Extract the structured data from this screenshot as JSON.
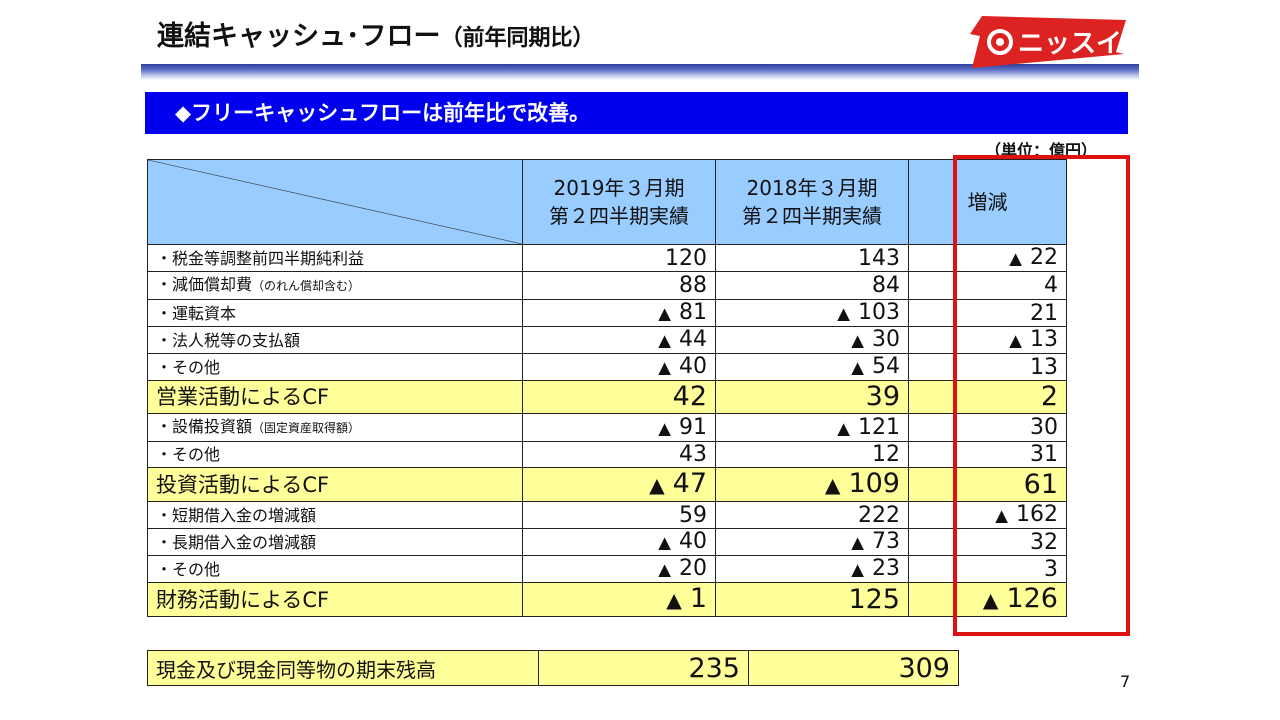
{
  "header": {
    "title": "連結キャッシュ･フロー",
    "title_suffix": "（前年同期比）",
    "logo_text": "ニッスイ",
    "logo_color": "#dd2222"
  },
  "banner": {
    "text": "◆フリーキャッシュフローは前年比で改善。",
    "background": "#0000ee"
  },
  "unit_note": "（単位：億円）",
  "table": {
    "columns": [
      {
        "line1": "2019年３月期",
        "line2": "第２四半期実績"
      },
      {
        "line1": "2018年３月期",
        "line2": "第２四半期実績"
      },
      {
        "line1": "増減",
        "line2": ""
      }
    ],
    "rows": [
      {
        "type": "item",
        "label": "・税金等調整前四半期純利益",
        "note": "",
        "v2019": "120",
        "v2018": "143",
        "diff": "22",
        "neg2019": false,
        "neg2018": false,
        "negdiff": true
      },
      {
        "type": "item",
        "label": "・減価償却費",
        "note": "（のれん償却含む）",
        "v2019": "88",
        "v2018": "84",
        "diff": "4",
        "neg2019": false,
        "neg2018": false,
        "negdiff": false
      },
      {
        "type": "item",
        "label": "・運転資本",
        "note": "",
        "v2019": "81",
        "v2018": "103",
        "diff": "21",
        "neg2019": true,
        "neg2018": true,
        "negdiff": false
      },
      {
        "type": "item",
        "label": "・法人税等の支払額",
        "note": "",
        "v2019": "44",
        "v2018": "30",
        "diff": "13",
        "neg2019": true,
        "neg2018": true,
        "negdiff": true
      },
      {
        "type": "item",
        "label": "・その他",
        "note": "",
        "v2019": "40",
        "v2018": "54",
        "diff": "13",
        "neg2019": true,
        "neg2018": true,
        "negdiff": false
      },
      {
        "type": "total",
        "label": "営業活動によるCF",
        "note": "",
        "v2019": "42",
        "v2018": "39",
        "diff": "2",
        "neg2019": false,
        "neg2018": false,
        "negdiff": false
      },
      {
        "type": "item",
        "label": "・設備投資額",
        "note": "（固定資産取得額）",
        "v2019": "91",
        "v2018": "121",
        "diff": "30",
        "neg2019": true,
        "neg2018": true,
        "negdiff": false
      },
      {
        "type": "item",
        "label": "・その他",
        "note": "",
        "v2019": "43",
        "v2018": "12",
        "diff": "31",
        "neg2019": false,
        "neg2018": false,
        "negdiff": false
      },
      {
        "type": "total",
        "label": "投資活動によるCF",
        "note": "",
        "v2019": "47",
        "v2018": "109",
        "diff": "61",
        "neg2019": true,
        "neg2018": true,
        "negdiff": false
      },
      {
        "type": "item",
        "label": "・短期借入金の増減額",
        "note": "",
        "v2019": "59",
        "v2018": "222",
        "diff": "162",
        "neg2019": false,
        "neg2018": false,
        "negdiff": true
      },
      {
        "type": "item",
        "label": "・長期借入金の増減額",
        "note": "",
        "v2019": "40",
        "v2018": "73",
        "diff": "32",
        "neg2019": true,
        "neg2018": true,
        "negdiff": false
      },
      {
        "type": "item",
        "label": "・その他",
        "note": "",
        "v2019": "20",
        "v2018": "23",
        "diff": "3",
        "neg2019": true,
        "neg2018": true,
        "negdiff": false
      },
      {
        "type": "total",
        "label": "財務活動によるCF",
        "note": "",
        "v2019": "1",
        "v2018": "125",
        "diff": "126",
        "neg2019": true,
        "neg2018": false,
        "negdiff": true
      }
    ],
    "neg_marker": "▲",
    "highlight_color": "#dd1111",
    "header_bg": "#99ccff",
    "total_bg": "#ffff99"
  },
  "cash_balance": {
    "label": "現金及び現金同等物の期末残高",
    "v2019": "235",
    "v2018": "309"
  },
  "page_number": "7"
}
